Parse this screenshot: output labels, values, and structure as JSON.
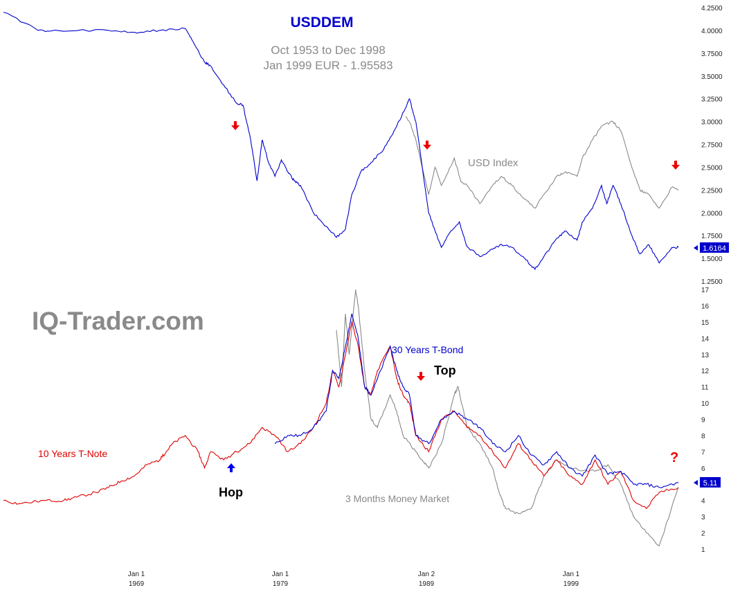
{
  "watermark": "IQ-Trader.com",
  "chart_data": [
    {
      "type": "line",
      "title": "USDDEM",
      "subtitle_lines": [
        "Oct 1953 to Dec 1998",
        "Jan 1999 EUR - 1.95583"
      ],
      "y_ticks": [
        "4.2500",
        "4.0000",
        "3.7500",
        "3.5000",
        "3.2500",
        "3.0000",
        "2.7500",
        "2.5000",
        "2.2500",
        "2.0000",
        "1.7500",
        "1.5000",
        "1.2500"
      ],
      "ylim": [
        1.25,
        4.25
      ],
      "last_value_label": "1.6164",
      "series": [
        {
          "name": "USDDEM",
          "color": "#0000cc",
          "x": [
            1953.8,
            1956.5,
            1958,
            1962,
            1964,
            1966,
            1968,
            1968.5,
            1969.5,
            1969.9,
            1971,
            1972,
            1972.5,
            1973.1,
            1973.6,
            1974,
            1974.5,
            1975,
            1975.5,
            1976,
            1976.5,
            1977,
            1978,
            1979,
            1979.8,
            1980.5,
            1981,
            1981.7,
            1982.5,
            1983.5,
            1984.3,
            1985.2,
            1985.5,
            1986,
            1987,
            1987.5,
            1988,
            1988.5,
            1989.4,
            1990,
            1991,
            1992,
            1992.7,
            1993.5,
            1994.5,
            1995.3,
            1996,
            1997,
            1997.7,
            1998.6,
            1999,
            1999.8,
            2000.5,
            2000.9,
            2001.4,
            2002,
            2003,
            2003.5,
            2004.2,
            2005,
            2006,
            2006.5
          ],
          "values": [
            4.2,
            4.0,
            4.0,
            4.0,
            3.98,
            4.0,
            4.02,
            3.9,
            3.65,
            3.62,
            3.4,
            3.2,
            3.18,
            2.8,
            2.35,
            2.8,
            2.55,
            2.4,
            2.58,
            2.45,
            2.35,
            2.3,
            2.0,
            1.85,
            1.73,
            1.82,
            2.2,
            2.45,
            2.55,
            2.7,
            2.9,
            3.15,
            3.25,
            3.0,
            2.0,
            1.8,
            1.62,
            1.75,
            1.9,
            1.63,
            1.52,
            1.6,
            1.65,
            1.62,
            1.5,
            1.38,
            1.52,
            1.72,
            1.8,
            1.7,
            1.9,
            2.05,
            2.3,
            2.1,
            2.3,
            2.1,
            1.7,
            1.55,
            1.65,
            1.45,
            1.62,
            1.62
          ]
        },
        {
          "name": "USD Index",
          "color": "#888888",
          "x": [
            1985.2,
            1985.5,
            1986,
            1987,
            1987.5,
            1988,
            1989,
            1989.5,
            1990,
            1991,
            1992,
            1992.7,
            1993.5,
            1994.5,
            1995.3,
            1996,
            1997,
            1997.7,
            1998.6,
            1999,
            1999.8,
            2000.5,
            2001.4,
            2002,
            2003,
            2003.5,
            2004.2,
            2005,
            2006,
            2006.5
          ],
          "values": [
            3.05,
            3.0,
            2.8,
            2.2,
            2.5,
            2.3,
            2.6,
            2.35,
            2.3,
            2.1,
            2.3,
            2.4,
            2.3,
            2.15,
            2.05,
            2.2,
            2.4,
            2.45,
            2.4,
            2.6,
            2.8,
            2.95,
            3.0,
            2.9,
            2.45,
            2.25,
            2.2,
            2.05,
            2.28,
            2.25
          ]
        }
      ]
    },
    {
      "type": "line",
      "y_ticks": [
        "17",
        "16",
        "15",
        "14",
        "13",
        "12",
        "11",
        "10",
        "9",
        "8",
        "7",
        "6",
        "5",
        "4",
        "3",
        "2",
        "1"
      ],
      "ylim": [
        1,
        17
      ],
      "last_value_label": "5.11",
      "x_tick_labels": [
        {
          "line1": "Jan 1",
          "line2": "1969"
        },
        {
          "line1": "Jan 1",
          "line2": "1979"
        },
        {
          "line1": "Jan 2",
          "line2": "1989"
        },
        {
          "line1": "Jan 1",
          "line2": "1999"
        }
      ],
      "series": [
        {
          "name": "3 Months Money Market",
          "color": "#888888",
          "x": [
            1979.8,
            1980.2,
            1980.5,
            1980.8,
            1981.3,
            1981.5,
            1982,
            1982.5,
            1983,
            1984,
            1984.5,
            1985,
            1986,
            1986.5,
            1987,
            1988,
            1989,
            1989.3,
            1990,
            1991,
            1992,
            1992.5,
            1993,
            1994,
            1995,
            1996,
            1997,
            1998,
            2000,
            2001,
            2002,
            2003,
            2004,
            2005,
            2006.5
          ],
          "values": [
            14.5,
            11.0,
            15.5,
            13.0,
            17.0,
            16.0,
            12.0,
            9.0,
            8.5,
            10.5,
            9.5,
            8.0,
            7.0,
            6.5,
            6.0,
            7.5,
            10.5,
            11.0,
            8.5,
            7.5,
            6.0,
            4.5,
            3.5,
            3.2,
            3.5,
            5.5,
            6.5,
            6.0,
            5.8,
            6.2,
            5.0,
            3.0,
            2.0,
            1.2,
            4.8
          ]
        },
        {
          "name": "10 Years T-Note",
          "color": "#dd0000",
          "x": [
            1953.8,
            1955,
            1957,
            1958.5,
            1959.5,
            1961,
            1962,
            1963,
            1964,
            1965,
            1966,
            1966.5,
            1967,
            1968,
            1969,
            1969.5,
            1970,
            1971,
            1972,
            1973,
            1974,
            1975,
            1976,
            1977,
            1978,
            1979,
            1979.5,
            1980,
            1980.5,
            1981,
            1981.5,
            1982,
            1982.5,
            1983,
            1984,
            1984.5,
            1985,
            1985.5,
            1986,
            1987,
            1988,
            1989,
            1990,
            1991,
            1992,
            1993,
            1994,
            1995,
            1996,
            1997,
            1998,
            1999,
            2000,
            2001,
            2002,
            2003,
            2004,
            2005,
            2006.5
          ],
          "values": [
            4.0,
            3.8,
            4.0,
            4.0,
            4.2,
            4.5,
            4.8,
            5.2,
            5.5,
            6.2,
            6.5,
            7.0,
            7.5,
            8.0,
            7.0,
            6.0,
            7.0,
            6.5,
            7.0,
            7.5,
            8.5,
            8.0,
            7.0,
            7.5,
            8.5,
            10.0,
            12.0,
            11.0,
            13.0,
            15.0,
            13.5,
            11.0,
            10.5,
            12.0,
            13.5,
            11.5,
            10.5,
            10.0,
            8.0,
            7.0,
            9.0,
            9.5,
            8.5,
            8.0,
            7.0,
            6.0,
            7.5,
            6.5,
            5.5,
            6.5,
            5.5,
            5.0,
            6.5,
            5.0,
            5.8,
            4.0,
            3.5,
            4.5,
            4.8
          ]
        },
        {
          "name": "30 Years T-Bond",
          "color": "#0000cc",
          "x": [
            1975,
            1976,
            1977,
            1978,
            1979,
            1979.5,
            1980,
            1980.5,
            1981,
            1981.5,
            1982,
            1982.5,
            1983,
            1984,
            1984.5,
            1985,
            1985.5,
            1986,
            1987,
            1988,
            1989,
            1990,
            1991,
            1992,
            1993,
            1994,
            1995,
            1996,
            1997,
            1998,
            1999,
            2000,
            2001,
            2002,
            2003,
            2004,
            2005,
            2006.5
          ],
          "values": [
            7.5,
            8.0,
            8.0,
            8.5,
            9.5,
            12.0,
            11.5,
            13.5,
            15.5,
            14.0,
            11.0,
            10.5,
            11.5,
            13.5,
            12.0,
            11.0,
            10.5,
            8.0,
            7.5,
            9.0,
            9.5,
            9.0,
            8.5,
            7.5,
            7.0,
            8.0,
            6.8,
            6.2,
            7.0,
            6.0,
            5.5,
            6.8,
            5.6,
            5.8,
            5.0,
            5.0,
            4.8,
            5.11
          ]
        }
      ]
    }
  ],
  "annotations": {
    "usd_index_label": "USD Index",
    "t_bond_label": "30 Years T-Bond",
    "t_note_label": "10 Years T-Note",
    "money_market_label": "3 Months Money Market",
    "top_label": "Top",
    "hop_label": "Hop",
    "question_mark": "?",
    "arrow_color_down": "#ee0000",
    "arrow_color_up": "#0000ee"
  }
}
